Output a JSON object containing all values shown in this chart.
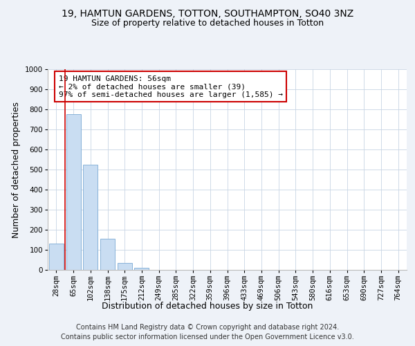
{
  "title": "19, HAMTUN GARDENS, TOTTON, SOUTHAMPTON, SO40 3NZ",
  "subtitle": "Size of property relative to detached houses in Totton",
  "xlabel": "Distribution of detached houses by size in Totton",
  "ylabel": "Number of detached properties",
  "bar_color": "#c9ddf2",
  "bar_edge_color": "#7aaad4",
  "highlight_color": "#cc0000",
  "categories": [
    "28sqm",
    "65sqm",
    "102sqm",
    "138sqm",
    "175sqm",
    "212sqm",
    "249sqm",
    "285sqm",
    "322sqm",
    "359sqm",
    "396sqm",
    "433sqm",
    "469sqm",
    "506sqm",
    "543sqm",
    "580sqm",
    "616sqm",
    "653sqm",
    "690sqm",
    "727sqm",
    "764sqm"
  ],
  "values": [
    130,
    775,
    525,
    155,
    35,
    10,
    0,
    0,
    0,
    0,
    0,
    0,
    0,
    0,
    0,
    0,
    0,
    0,
    0,
    0,
    0
  ],
  "annotation_text": "19 HAMTUN GARDENS: 56sqm\n← 2% of detached houses are smaller (39)\n97% of semi-detached houses are larger (1,585) →",
  "ylim": [
    0,
    1000
  ],
  "yticks": [
    0,
    100,
    200,
    300,
    400,
    500,
    600,
    700,
    800,
    900,
    1000
  ],
  "footer_line1": "Contains HM Land Registry data © Crown copyright and database right 2024.",
  "footer_line2": "Contains public sector information licensed under the Open Government Licence v3.0.",
  "bg_color": "#eef2f8",
  "plot_bg_color": "#ffffff",
  "title_fontsize": 10,
  "subtitle_fontsize": 9,
  "axis_label_fontsize": 9,
  "tick_fontsize": 7.5,
  "annotation_fontsize": 8,
  "footer_fontsize": 7
}
